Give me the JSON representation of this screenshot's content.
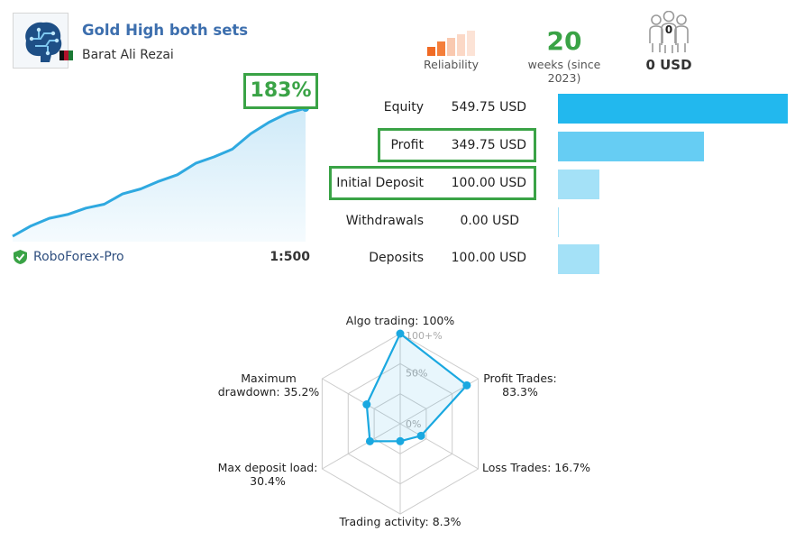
{
  "signal": {
    "name": "Gold High both sets",
    "author": "Barat Ali Rezai"
  },
  "header_stats": {
    "reliability_label": "Reliability",
    "weeks_value": "20",
    "weeks_label": "weeks (since 2023)",
    "subscribers_count": "0",
    "subscribers_funds": "0 USD"
  },
  "growth": {
    "value_label": "183%",
    "points": [
      0,
      8,
      14,
      17,
      22,
      25,
      33,
      37,
      43,
      48,
      57,
      62,
      68,
      80,
      89,
      96,
      100
    ],
    "broker": "RoboForex-Pro",
    "leverage": "1:500"
  },
  "account": {
    "rows": [
      {
        "label": "Equity",
        "value": "549.75 USD",
        "bar_fraction": 1.0,
        "color": "#22b8ee"
      },
      {
        "label": "Profit",
        "value": "349.75 USD",
        "bar_fraction": 0.636,
        "color": "#66cdf3"
      },
      {
        "label": "Initial Deposit",
        "value": "100.00 USD",
        "bar_fraction": 0.182,
        "color": "#a4e1f7"
      },
      {
        "label": "Withdrawals",
        "value": "0.00 USD",
        "bar_fraction": 0.0,
        "color": "#a4e1f7"
      },
      {
        "label": "Deposits",
        "value": "100.00 USD",
        "bar_fraction": 0.182,
        "color": "#a4e1f7"
      }
    ]
  },
  "chart_data": {
    "type": "radar",
    "scale_labels": [
      "100+%",
      "50%",
      "0%"
    ],
    "axes": [
      {
        "label": "Algo trading: 100%",
        "value": 100
      },
      {
        "label": "Profit Trades: 83.3%",
        "value": 83.3
      },
      {
        "label": "Loss Trades: 16.7%",
        "value": 16.7
      },
      {
        "label": "Trading activity: 8.3%",
        "value": 8.3
      },
      {
        "label": "Max deposit load: 30.4%",
        "value": 30.4
      },
      {
        "label": "Maximum drawdown: 35.2%",
        "value": 35.2
      }
    ],
    "label_lines": [
      [
        "Algo trading: 100%"
      ],
      [
        "Profit Trades:",
        "83.3%"
      ],
      [
        "Loss Trades: 16.7%"
      ],
      [
        "Trading activity: 8.3%"
      ],
      [
        "Max deposit load:",
        "30.4%"
      ],
      [
        "Maximum",
        "drawdown: 35.2%"
      ]
    ]
  },
  "colors": {
    "accent_green": "#3aa346",
    "title_blue": "#3d6fae",
    "line_blue": "#2fa9e0",
    "radar_blue": "#1aa8e0"
  }
}
